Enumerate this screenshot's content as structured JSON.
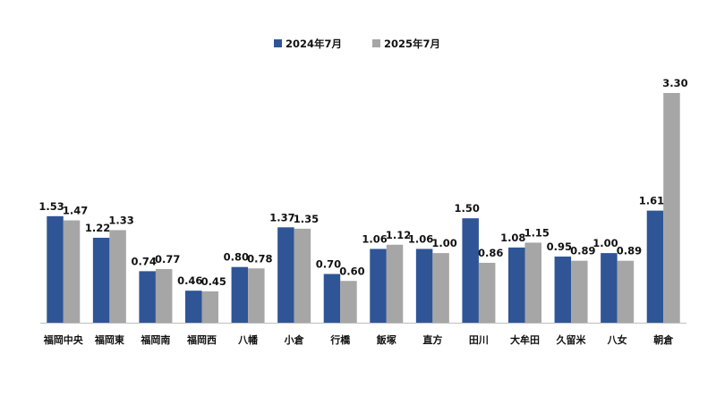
{
  "chart_data": {
    "type": "bar",
    "title": "",
    "xlabel": "",
    "ylabel": "",
    "ylim": [
      0,
      3.3
    ],
    "grid": false,
    "legend_position": "top-center",
    "categories": [
      "福岡中央",
      "福岡東",
      "福岡南",
      "福岡西",
      "八幡",
      "小倉",
      "行橋",
      "飯塚",
      "直方",
      "田川",
      "大牟田",
      "久留米",
      "八女",
      "朝倉"
    ],
    "series": [
      {
        "name": "2024年7月",
        "color": "#2f5597",
        "values": [
          1.53,
          1.22,
          0.74,
          0.46,
          0.8,
          1.37,
          0.7,
          1.06,
          1.06,
          1.5,
          1.08,
          0.95,
          1.0,
          1.61
        ]
      },
      {
        "name": "2025年7月",
        "color": "#a6a6a6",
        "values": [
          1.47,
          1.33,
          0.77,
          0.45,
          0.78,
          1.35,
          0.6,
          1.12,
          1.0,
          0.86,
          1.15,
          0.89,
          0.89,
          3.3
        ]
      }
    ]
  }
}
